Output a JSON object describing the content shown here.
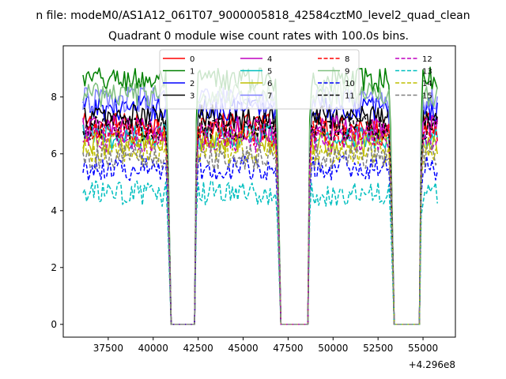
{
  "figure": {
    "suptitle": "n file: modeM0/AS1A12_061T07_9000005818_42584cztM0_level2_quad_clean",
    "offset_label": "+4.296e8"
  },
  "chart_data": {
    "type": "line",
    "title": "Quadrant 0 module wise count rates with 100.0s bins.",
    "xlabel": "",
    "ylabel": "",
    "x_offset": 429600000,
    "xlim": [
      35000,
      56800
    ],
    "ylim": [
      -0.45,
      9.8
    ],
    "xticks": [
      37500,
      40000,
      42500,
      45000,
      47500,
      50000,
      52500,
      55000
    ],
    "yticks": [
      0,
      2,
      4,
      6,
      8
    ],
    "legend_position": "top-center",
    "legend_columns": 4,
    "x_segments": [
      [
        36100,
        41000
      ],
      [
        42300,
        47100
      ],
      [
        48600,
        53400
      ],
      [
        54800,
        55800
      ]
    ],
    "gaps": [
      [
        41000,
        42300
      ],
      [
        47100,
        48600
      ],
      [
        53400,
        54800
      ]
    ],
    "series": [
      {
        "name": "0",
        "color": "#ff0000",
        "dash": "solid",
        "level": 7.0,
        "alpha": 1.0
      },
      {
        "name": "1",
        "color": "#008000",
        "dash": "solid",
        "level": 8.6,
        "alpha": 1.0
      },
      {
        "name": "2",
        "color": "#0000ff",
        "dash": "solid",
        "level": 7.6,
        "alpha": 1.0
      },
      {
        "name": "3",
        "color": "#000000",
        "dash": "solid",
        "level": 7.3,
        "alpha": 1.0
      },
      {
        "name": "4",
        "color": "#bf00bf",
        "dash": "solid",
        "level": 6.9,
        "alpha": 1.0
      },
      {
        "name": "5",
        "color": "#00bfbf",
        "dash": "solid",
        "level": 6.6,
        "alpha": 1.0
      },
      {
        "name": "6",
        "color": "#bfbf00",
        "dash": "solid",
        "level": 6.4,
        "alpha": 1.0
      },
      {
        "name": "7",
        "color": "#8080ff",
        "dash": "solid",
        "level": 7.9,
        "alpha": 1.0
      },
      {
        "name": "8",
        "color": "#ff0000",
        "dash": "dashed",
        "level": 6.7,
        "alpha": 1.0
      },
      {
        "name": "9",
        "color": "#80c080",
        "dash": "solid",
        "level": 8.1,
        "alpha": 1.0
      },
      {
        "name": "10",
        "color": "#0000ff",
        "dash": "dashed",
        "level": 5.5,
        "alpha": 1.0
      },
      {
        "name": "11",
        "color": "#000000",
        "dash": "dashed",
        "level": 6.9,
        "alpha": 1.0
      },
      {
        "name": "12",
        "color": "#bf00bf",
        "dash": "dashed",
        "level": 6.5,
        "alpha": 1.0
      },
      {
        "name": "13",
        "color": "#00bfbf",
        "dash": "dashed",
        "level": 4.6,
        "alpha": 1.0
      },
      {
        "name": "14",
        "color": "#bfbf00",
        "dash": "dashed",
        "level": 6.1,
        "alpha": 1.0
      },
      {
        "name": "15",
        "color": "#808080",
        "dash": "dashed",
        "level": 5.9,
        "alpha": 1.0
      }
    ]
  }
}
